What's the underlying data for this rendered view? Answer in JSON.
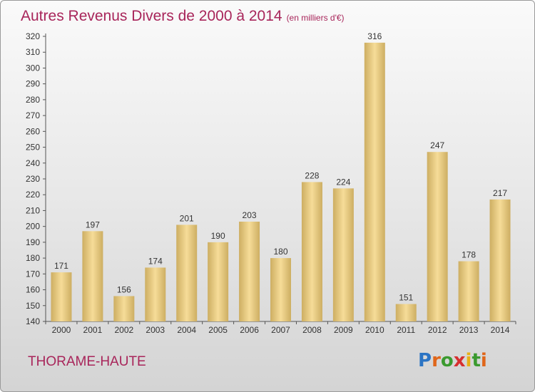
{
  "title": "Autres Revenus Divers de 2000 à 2014",
  "unit": "(en milliers d'€)",
  "commune": "THORAME-HAUTE",
  "logo": "Proxiti",
  "colors": {
    "title": "#a8255a",
    "bar_light": "#f6dc98",
    "bar_dark": "#cdae62"
  },
  "chart_data": {
    "type": "bar",
    "title": "Autres Revenus Divers de 2000 à 2014",
    "subtitle": "(en milliers d'€)",
    "categories": [
      "2000",
      "2001",
      "2002",
      "2003",
      "2004",
      "2005",
      "2006",
      "2007",
      "2008",
      "2009",
      "2010",
      "2011",
      "2012",
      "2013",
      "2014"
    ],
    "values": [
      171,
      197,
      156,
      174,
      201,
      190,
      203,
      180,
      228,
      224,
      316,
      151,
      247,
      178,
      217
    ],
    "ylim": [
      140,
      320
    ],
    "ytick_step": 10,
    "grid": false,
    "data_labels": true
  }
}
